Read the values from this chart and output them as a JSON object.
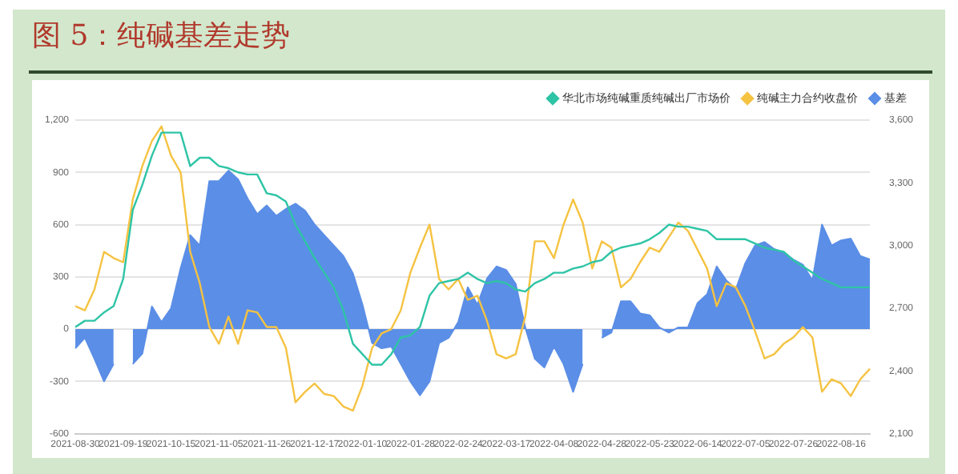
{
  "chart_data": {
    "type": "line",
    "title": "图 5：纯碱基差走势",
    "categories": [
      "2021-08-30",
      null,
      null,
      null,
      null,
      "2021-09-19",
      null,
      null,
      null,
      null,
      "2021-10-15",
      null,
      null,
      null,
      null,
      "2021-11-05",
      null,
      null,
      null,
      null,
      "2021-11-26",
      null,
      null,
      null,
      null,
      "2021-12-17",
      null,
      null,
      null,
      null,
      "2022-01-10",
      null,
      null,
      null,
      null,
      "2022-01-28",
      null,
      null,
      null,
      null,
      "2022-02-24",
      null,
      null,
      null,
      null,
      "2022-03-17",
      null,
      null,
      null,
      null,
      "2022-04-08",
      null,
      null,
      null,
      null,
      "2022-04-28",
      null,
      null,
      null,
      null,
      "2022-05-23",
      null,
      null,
      null,
      null,
      "2022-06-14",
      null,
      null,
      null,
      null,
      "2022-07-05",
      null,
      null,
      null,
      null,
      "2022-07-26",
      null,
      null,
      null,
      null,
      "2022-08-16",
      null,
      null,
      null
    ],
    "series": [
      {
        "name": "基差",
        "type": "area",
        "color": "#5b8ee6",
        "values": [
          -110,
          -50,
          -170,
          -300,
          -200,
          null,
          -200,
          -140,
          130,
          40,
          120,
          350,
          540,
          480,
          850,
          850,
          910,
          860,
          750,
          660,
          710,
          650,
          690,
          720,
          680,
          600,
          540,
          480,
          420,
          320,
          140,
          -80,
          -110,
          -100,
          -200,
          -300,
          -380,
          -300,
          -80,
          -50,
          40,
          240,
          140,
          290,
          360,
          340,
          260,
          10,
          -170,
          -220,
          -100,
          -200,
          -360,
          -200,
          null,
          -50,
          -20,
          160,
          160,
          90,
          80,
          10,
          -20,
          10,
          10,
          150,
          200,
          360,
          280,
          230,
          380,
          480,
          500,
          460,
          440,
          400,
          370,
          280,
          600,
          480,
          510,
          520,
          420,
          400
        ]
      },
      {
        "name": "华北市场纯碱重质纯碱出厂市场价",
        "type": "line",
        "axis": "y2",
        "color": "#2ec4a6",
        "values": [
          2610,
          2640,
          2640,
          2680,
          2710,
          2840,
          3170,
          3290,
          3430,
          3540,
          3540,
          3540,
          3380,
          3420,
          3420,
          3380,
          3370,
          3350,
          3340,
          3340,
          3250,
          3240,
          3210,
          3100,
          3020,
          2940,
          2870,
          2800,
          2690,
          2530,
          2480,
          2430,
          2430,
          2480,
          2560,
          2570,
          2610,
          2760,
          2820,
          2830,
          2840,
          2870,
          2840,
          2820,
          2830,
          2820,
          2790,
          2780,
          2820,
          2840,
          2870,
          2870,
          2890,
          2900,
          2920,
          2930,
          2970,
          2990,
          3000,
          3010,
          3030,
          3060,
          3100,
          3090,
          3090,
          3080,
          3070,
          3030,
          3030,
          3030,
          3030,
          3010,
          2990,
          2980,
          2970,
          2930,
          2900,
          2870,
          2840,
          2820,
          2800,
          2800,
          2800,
          2800
        ]
      },
      {
        "name": "纯碱主力合约收盘价",
        "type": "line",
        "axis": "y2",
        "color": "#f5c342",
        "values": [
          2710,
          2690,
          2790,
          2970,
          2940,
          2920,
          3220,
          3380,
          3500,
          3570,
          3430,
          3350,
          2970,
          2820,
          2610,
          2530,
          2660,
          2530,
          2690,
          2680,
          2610,
          2610,
          2510,
          2250,
          2300,
          2340,
          2290,
          2280,
          2230,
          2210,
          2330,
          2510,
          2580,
          2600,
          2690,
          2870,
          2990,
          3100,
          2840,
          2790,
          2840,
          2740,
          2760,
          2640,
          2480,
          2460,
          2480,
          2660,
          3020,
          3020,
          2940,
          3100,
          3220,
          3110,
          2890,
          3020,
          2990,
          2800,
          2840,
          2920,
          2990,
          2970,
          3040,
          3110,
          3070,
          2980,
          2890,
          2710,
          2820,
          2800,
          2710,
          2590,
          2460,
          2480,
          2530,
          2560,
          2610,
          2560,
          2300,
          2360,
          2340,
          2280,
          2360,
          2410
        ]
      }
    ],
    "ylim": [
      -600,
      1200
    ],
    "yticks": [
      {
        "value": -600,
        "label": "-600"
      },
      {
        "value": -300,
        "label": "-300"
      },
      0,
      300,
      600,
      900,
      {
        "value": 1200,
        "label": "1,200"
      }
    ],
    "y2lim": [
      2100,
      3600
    ],
    "y2ticks": [
      {
        "value": 2100,
        "label": "2,100"
      },
      {
        "value": 2400,
        "label": "2,400"
      },
      {
        "value": 2700,
        "label": "2,700"
      },
      {
        "value": 3000,
        "label": "3,000"
      },
      {
        "value": 3300,
        "label": "3,300"
      },
      {
        "value": 3600,
        "label": "3,600"
      }
    ],
    "grid": "y",
    "legend": "top right",
    "marker": "none",
    "line_style": "solid"
  }
}
